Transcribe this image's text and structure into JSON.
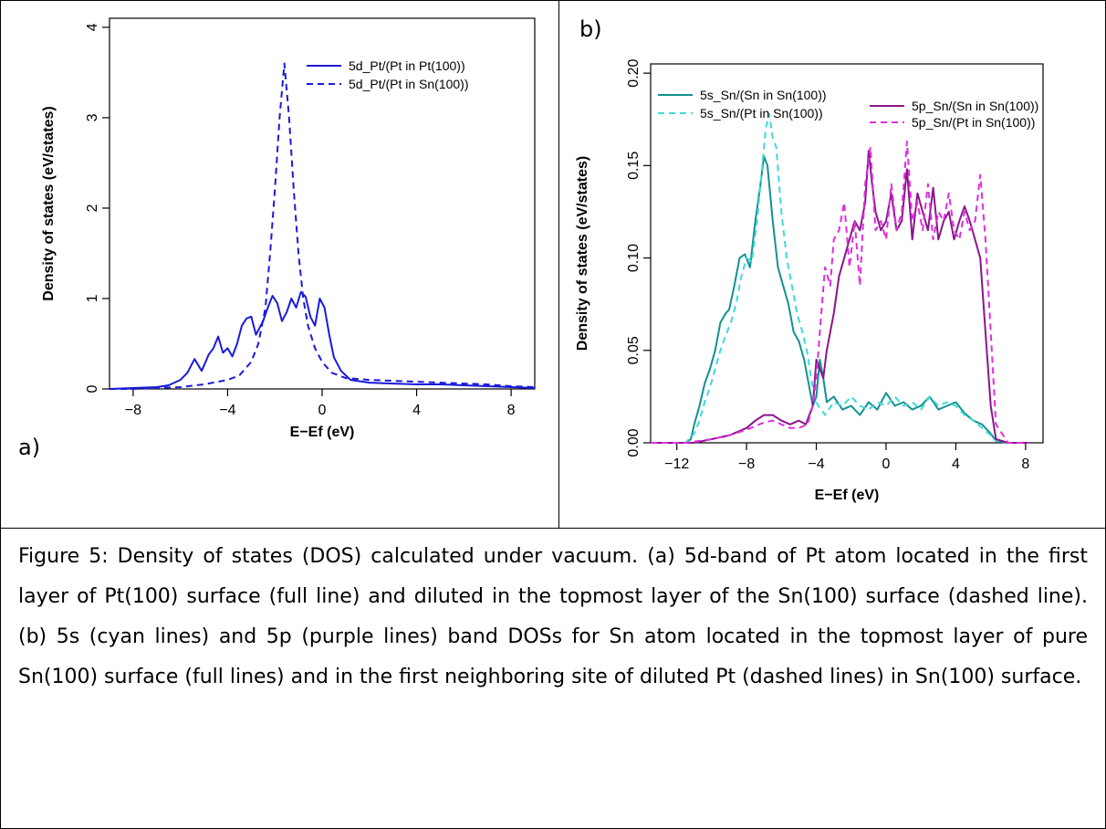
{
  "panel_a_label": "a)",
  "panel_b_label": "b)",
  "caption": "Figure 5: Density of states (DOS) calculated under vacuum. (a) 5d-band of Pt atom located in the first layer of Pt(100) surface (full line) and diluted in the topmost layer of the Sn(100) surface (dashed line). (b) 5s (cyan lines) and 5p (purple lines) band DOSs for Sn atom located in the topmost layer of pure Sn(100) surface (full lines) and in the first neighboring site of diluted Pt (dashed lines) in Sn(100) surface.",
  "chart_data": [
    {
      "type": "line",
      "panel": "a",
      "xlabel": "E−Ef (eV)",
      "ylabel": "Density of states (eV/states)",
      "xlim": [
        -9,
        9
      ],
      "ylim": [
        0,
        4.1
      ],
      "xticks": [
        -8,
        -4,
        0,
        4,
        8
      ],
      "yticks": [
        0,
        1,
        2,
        3,
        4
      ],
      "xtick_labels": [
        "−8",
        "−4",
        "0",
        "4",
        "8"
      ],
      "ytick_labels": [
        "0",
        "1",
        "2",
        "3",
        "4"
      ],
      "legend_position": "top-right",
      "series": [
        {
          "name": "5d_Pt/(Pt in Pt(100))",
          "color": "#1a1adb",
          "dash": "solid",
          "x": [
            -9.0,
            -8.0,
            -7.0,
            -6.5,
            -6.0,
            -5.7,
            -5.4,
            -5.1,
            -4.8,
            -4.6,
            -4.4,
            -4.2,
            -4.0,
            -3.8,
            -3.6,
            -3.4,
            -3.2,
            -3.0,
            -2.8,
            -2.5,
            -2.3,
            -2.1,
            -1.9,
            -1.7,
            -1.5,
            -1.3,
            -1.1,
            -0.9,
            -0.7,
            -0.5,
            -0.3,
            -0.1,
            0.1,
            0.3,
            0.5,
            0.8,
            1.2,
            2.0,
            3.0,
            4.0,
            5.0,
            6.0,
            7.0,
            8.0,
            9.0
          ],
          "y": [
            0.0,
            0.01,
            0.02,
            0.04,
            0.1,
            0.18,
            0.33,
            0.2,
            0.38,
            0.45,
            0.58,
            0.4,
            0.45,
            0.36,
            0.5,
            0.7,
            0.78,
            0.8,
            0.6,
            0.75,
            0.9,
            1.03,
            0.95,
            0.75,
            0.85,
            1.0,
            0.9,
            1.07,
            1.02,
            0.8,
            0.7,
            1.0,
            0.9,
            0.6,
            0.35,
            0.2,
            0.1,
            0.07,
            0.06,
            0.05,
            0.05,
            0.04,
            0.03,
            0.02,
            0.01
          ]
        },
        {
          "name": "5d_Pt/(Pt in Sn(100))",
          "color": "#1a1adb",
          "dash": "dashed",
          "x": [
            -9.0,
            -8.0,
            -6.0,
            -5.0,
            -4.0,
            -3.5,
            -3.0,
            -2.7,
            -2.4,
            -2.2,
            -2.0,
            -1.8,
            -1.6,
            -1.4,
            -1.2,
            -1.0,
            -0.8,
            -0.6,
            -0.3,
            0.0,
            0.4,
            1.0,
            2.0,
            3.0,
            4.0,
            5.0,
            6.0,
            7.0,
            8.0,
            9.0
          ],
          "y": [
            0.0,
            0.0,
            0.02,
            0.05,
            0.1,
            0.15,
            0.3,
            0.5,
            0.9,
            1.5,
            2.2,
            3.0,
            3.6,
            3.0,
            2.2,
            1.5,
            1.0,
            0.7,
            0.45,
            0.3,
            0.18,
            0.12,
            0.1,
            0.09,
            0.08,
            0.07,
            0.06,
            0.05,
            0.03,
            0.02
          ]
        }
      ]
    },
    {
      "type": "line",
      "panel": "b",
      "xlabel": "E−Ef (eV)",
      "ylabel": "Density of states (eV/states)",
      "xlim": [
        -13.5,
        9
      ],
      "ylim": [
        0,
        0.205
      ],
      "xticks": [
        -12,
        -8,
        -4,
        0,
        4,
        8
      ],
      "yticks": [
        0.0,
        0.05,
        0.1,
        0.15,
        0.2
      ],
      "xtick_labels": [
        "−12",
        "−8",
        "−4",
        "0",
        "4",
        "8"
      ],
      "ytick_labels": [
        "0.00",
        "0.05",
        "0.10",
        "0.15",
        "0.20"
      ],
      "legend_position": "top",
      "series": [
        {
          "name": "5s_Sn/(Sn in Sn(100))",
          "color": "#139191",
          "dash": "solid",
          "x": [
            -13.5,
            -11.5,
            -11.2,
            -11.0,
            -10.7,
            -10.4,
            -10.1,
            -9.8,
            -9.5,
            -9.2,
            -9.0,
            -8.7,
            -8.4,
            -8.1,
            -7.8,
            -7.5,
            -7.2,
            -7.0,
            -6.8,
            -6.5,
            -6.2,
            -5.9,
            -5.6,
            -5.3,
            -5.0,
            -4.7,
            -4.4,
            -4.2,
            -4.0,
            -3.8,
            -3.6,
            -3.4,
            -3.0,
            -2.5,
            -2.0,
            -1.5,
            -1.0,
            -0.5,
            0.0,
            0.5,
            1.0,
            1.5,
            2.0,
            2.5,
            3.0,
            3.5,
            4.0,
            4.5,
            5.0,
            5.5,
            6.0,
            6.3,
            7.0,
            8.2
          ],
          "y": [
            0.0,
            0.0,
            0.002,
            0.01,
            0.02,
            0.032,
            0.04,
            0.05,
            0.065,
            0.07,
            0.072,
            0.085,
            0.1,
            0.102,
            0.095,
            0.12,
            0.14,
            0.155,
            0.15,
            0.12,
            0.095,
            0.085,
            0.075,
            0.06,
            0.055,
            0.045,
            0.03,
            0.02,
            0.025,
            0.045,
            0.035,
            0.022,
            0.025,
            0.018,
            0.02,
            0.015,
            0.022,
            0.018,
            0.027,
            0.02,
            0.022,
            0.018,
            0.02,
            0.025,
            0.018,
            0.02,
            0.022,
            0.016,
            0.012,
            0.01,
            0.005,
            0.001,
            0.0,
            0.0
          ]
        },
        {
          "name": "5s_Sn/(Pt in Sn(100))",
          "color": "#3fd9d9",
          "dash": "dashed",
          "x": [
            -13.5,
            -11.5,
            -11.0,
            -10.7,
            -10.4,
            -10.1,
            -9.8,
            -9.5,
            -9.2,
            -8.9,
            -8.6,
            -8.3,
            -8.0,
            -7.7,
            -7.4,
            -7.1,
            -6.9,
            -6.7,
            -6.5,
            -6.3,
            -6.0,
            -5.7,
            -5.4,
            -5.1,
            -4.8,
            -4.5,
            -4.3,
            -4.1,
            -3.9,
            -3.7,
            -3.5,
            -3.0,
            -2.5,
            -2.0,
            -1.5,
            -1.0,
            -0.5,
            0.0,
            0.5,
            1.0,
            1.5,
            2.0,
            2.5,
            3.0,
            3.5,
            4.0,
            4.5,
            5.0,
            5.5,
            6.0,
            6.3,
            7.0,
            8.2
          ],
          "y": [
            0.0,
            0.0,
            0.005,
            0.012,
            0.022,
            0.03,
            0.04,
            0.05,
            0.058,
            0.065,
            0.075,
            0.09,
            0.1,
            0.098,
            0.12,
            0.15,
            0.17,
            0.178,
            0.165,
            0.16,
            0.125,
            0.1,
            0.085,
            0.07,
            0.06,
            0.048,
            0.035,
            0.025,
            0.02,
            0.018,
            0.015,
            0.022,
            0.02,
            0.025,
            0.02,
            0.018,
            0.022,
            0.02,
            0.025,
            0.02,
            0.022,
            0.018,
            0.025,
            0.02,
            0.022,
            0.02,
            0.015,
            0.012,
            0.008,
            0.004,
            0.001,
            0.0,
            0.0
          ]
        },
        {
          "name": "5p_Sn/(Sn in Sn(100))",
          "color": "#8a168a",
          "dash": "solid",
          "x": [
            -13.5,
            -11.5,
            -11.0,
            -10.0,
            -9.0,
            -8.0,
            -7.5,
            -7.0,
            -6.5,
            -6.0,
            -5.5,
            -5.0,
            -4.6,
            -4.2,
            -4.0,
            -3.8,
            -3.6,
            -3.4,
            -3.0,
            -2.7,
            -2.4,
            -2.1,
            -1.8,
            -1.5,
            -1.2,
            -1.0,
            -0.8,
            -0.6,
            -0.3,
            0.0,
            0.3,
            0.6,
            0.9,
            1.2,
            1.5,
            1.8,
            2.1,
            2.4,
            2.7,
            3.0,
            3.3,
            3.6,
            3.9,
            4.2,
            4.5,
            4.8,
            5.1,
            5.4,
            5.7,
            6.0,
            6.3,
            7.0,
            8.2
          ],
          "y": [
            0.0,
            0.0,
            0.0,
            0.002,
            0.004,
            0.008,
            0.012,
            0.015,
            0.015,
            0.012,
            0.01,
            0.012,
            0.01,
            0.02,
            0.045,
            0.04,
            0.035,
            0.05,
            0.07,
            0.09,
            0.1,
            0.11,
            0.12,
            0.115,
            0.13,
            0.158,
            0.14,
            0.125,
            0.115,
            0.12,
            0.135,
            0.115,
            0.12,
            0.148,
            0.11,
            0.135,
            0.125,
            0.115,
            0.138,
            0.11,
            0.12,
            0.125,
            0.11,
            0.12,
            0.128,
            0.12,
            0.11,
            0.1,
            0.06,
            0.02,
            0.002,
            0.0,
            0.0
          ]
        },
        {
          "name": "5p_Sn/(Pt in Sn(100))",
          "color": "#e02ee0",
          "dash": "dashed",
          "x": [
            -13.5,
            -11.5,
            -10.0,
            -9.0,
            -8.0,
            -7.0,
            -6.5,
            -6.0,
            -5.5,
            -5.0,
            -4.5,
            -4.2,
            -4.0,
            -3.8,
            -3.5,
            -3.2,
            -3.0,
            -2.7,
            -2.4,
            -2.1,
            -1.8,
            -1.5,
            -1.2,
            -0.9,
            -0.6,
            -0.3,
            0.0,
            0.3,
            0.6,
            0.9,
            1.2,
            1.5,
            1.8,
            2.1,
            2.4,
            2.7,
            3.0,
            3.3,
            3.6,
            3.9,
            4.2,
            4.5,
            4.8,
            5.1,
            5.4,
            5.7,
            6.0,
            6.3,
            7.0,
            8.2
          ],
          "y": [
            0.0,
            0.0,
            0.002,
            0.004,
            0.007,
            0.011,
            0.012,
            0.01,
            0.008,
            0.008,
            0.01,
            0.02,
            0.035,
            0.06,
            0.095,
            0.085,
            0.11,
            0.115,
            0.13,
            0.095,
            0.12,
            0.085,
            0.14,
            0.16,
            0.115,
            0.12,
            0.11,
            0.14,
            0.115,
            0.125,
            0.163,
            0.12,
            0.13,
            0.115,
            0.14,
            0.11,
            0.125,
            0.12,
            0.135,
            0.115,
            0.11,
            0.125,
            0.115,
            0.12,
            0.145,
            0.11,
            0.06,
            0.01,
            0.0,
            0.0
          ]
        }
      ]
    }
  ]
}
